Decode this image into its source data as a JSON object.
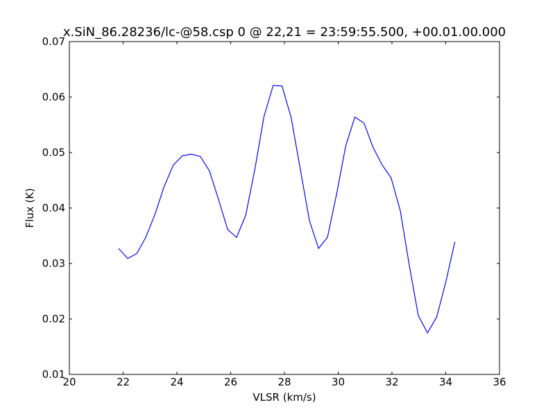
{
  "chart_data": {
    "type": "line",
    "title": "x.SiN_86.28236/lc-@58.csp 0 @ 22,21 = 23:59:55.500, +00.01.00.000",
    "xlabel": "VLSR (km/s)",
    "ylabel": "Flux (K)",
    "x": [
      21.83,
      22.17,
      22.51,
      22.84,
      23.18,
      23.52,
      23.86,
      24.2,
      24.53,
      24.87,
      25.21,
      25.55,
      25.89,
      26.22,
      26.56,
      26.9,
      27.24,
      27.58,
      27.91,
      28.25,
      28.59,
      28.93,
      29.27,
      29.6,
      29.94,
      30.28,
      30.62,
      30.96,
      31.29,
      31.63,
      31.97,
      32.31,
      32.65,
      32.98,
      33.32,
      33.66,
      34.0,
      34.34
    ],
    "series": [
      {
        "color": "#0000ff",
        "values": [
          0.0327,
          0.0309,
          0.0318,
          0.0347,
          0.0388,
          0.0438,
          0.0477,
          0.0494,
          0.0497,
          0.0493,
          0.0467,
          0.0415,
          0.0361,
          0.0347,
          0.0387,
          0.047,
          0.0565,
          0.0621,
          0.062,
          0.0563,
          0.047,
          0.0377,
          0.0327,
          0.0347,
          0.0425,
          0.0512,
          0.0564,
          0.0553,
          0.051,
          0.0478,
          0.0454,
          0.0395,
          0.0295,
          0.0206,
          0.0175,
          0.0203,
          0.0266,
          0.0339
        ]
      }
    ],
    "xlim": [
      20,
      36
    ],
    "xticks": [
      20,
      22,
      24,
      26,
      28,
      30,
      32,
      34,
      36
    ],
    "ylim": [
      0.01,
      0.07
    ],
    "yticks": [
      0.01,
      0.02,
      0.03,
      0.04,
      0.05,
      0.06,
      0.07
    ]
  }
}
